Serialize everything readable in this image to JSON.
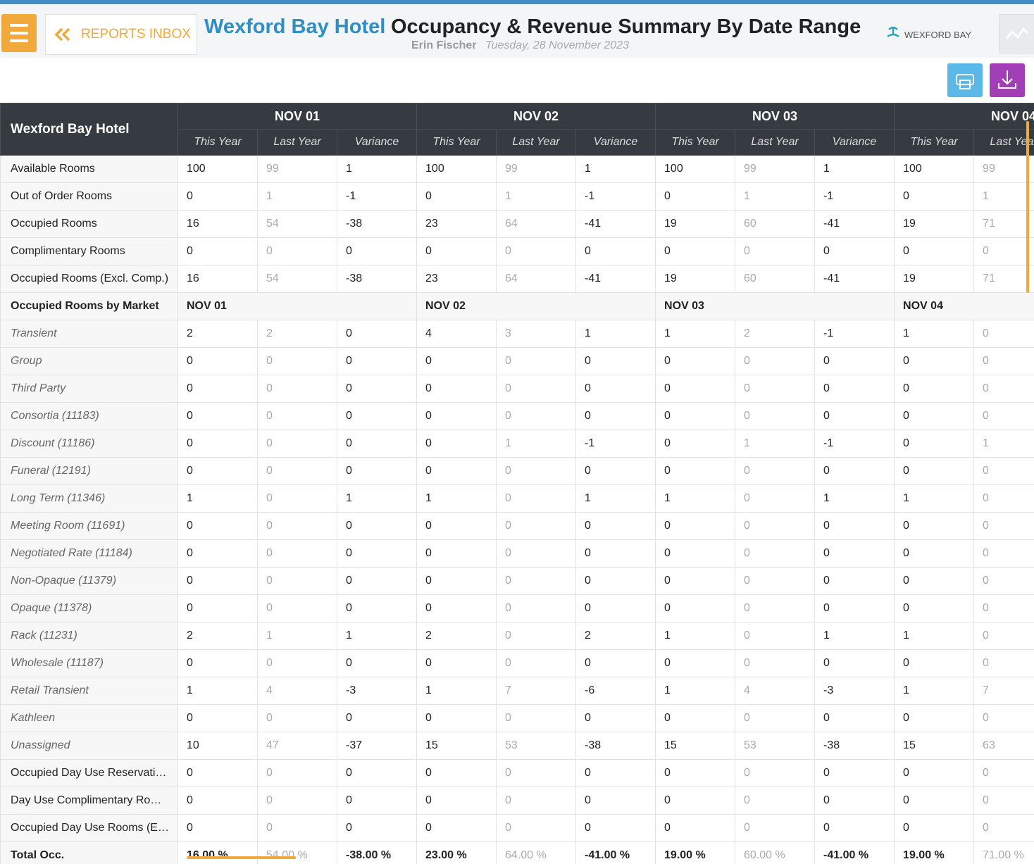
{
  "header": {
    "menu_button": "",
    "back_label": "REPORTS INBOX",
    "hotel": "Wexford Bay Hotel",
    "report_title": "Occupancy & Revenue Summary By Date Range",
    "user": "Erin Fischer",
    "date": "Tuesday, 28 November 2023",
    "logo": "WEXFORD BAY"
  },
  "table": {
    "corner": "Wexford Bay Hotel",
    "dates": [
      "NOV 01",
      "NOV 02",
      "NOV 03",
      "NOV 04"
    ],
    "columns": [
      "This Year",
      "Last Year",
      "Variance"
    ],
    "rows": [
      {
        "label": "Available Rooms",
        "values": [
          100,
          99,
          1,
          100,
          99,
          1,
          100,
          99,
          1,
          100,
          99
        ]
      },
      {
        "label": "Out of Order Rooms",
        "values": [
          0,
          1,
          -1,
          0,
          1,
          -1,
          0,
          1,
          -1,
          0,
          1
        ]
      },
      {
        "label": "Occupied Rooms",
        "values": [
          16,
          54,
          -38,
          23,
          64,
          -41,
          19,
          60,
          -41,
          19,
          71
        ]
      },
      {
        "label": "Complimentary Rooms",
        "values": [
          0,
          0,
          0,
          0,
          0,
          0,
          0,
          0,
          0,
          0,
          0
        ]
      },
      {
        "label": "Occupied Rooms (Excl. Comp.)",
        "values": [
          16,
          54,
          -38,
          23,
          64,
          -41,
          19,
          60,
          -41,
          19,
          71
        ]
      }
    ],
    "market": {
      "label": "Occupied Rooms by Market",
      "rows": [
        {
          "label": "Transient",
          "values": [
            2,
            2,
            0,
            4,
            3,
            1,
            1,
            2,
            -1,
            1,
            0
          ]
        },
        {
          "label": "Group",
          "values": [
            0,
            0,
            0,
            0,
            0,
            0,
            0,
            0,
            0,
            0,
            0
          ]
        },
        {
          "label": "Third Party",
          "values": [
            0,
            0,
            0,
            0,
            0,
            0,
            0,
            0,
            0,
            0,
            0
          ]
        },
        {
          "label": "Consortia (11183)",
          "values": [
            0,
            0,
            0,
            0,
            0,
            0,
            0,
            0,
            0,
            0,
            0
          ]
        },
        {
          "label": "Discount (11186)",
          "values": [
            0,
            0,
            0,
            0,
            1,
            -1,
            0,
            1,
            -1,
            0,
            1
          ]
        },
        {
          "label": "Funeral (12191)",
          "values": [
            0,
            0,
            0,
            0,
            0,
            0,
            0,
            0,
            0,
            0,
            0
          ]
        },
        {
          "label": "Long Term (11346)",
          "values": [
            1,
            0,
            1,
            1,
            0,
            1,
            1,
            0,
            1,
            1,
            0
          ]
        },
        {
          "label": "Meeting Room (11691)",
          "values": [
            0,
            0,
            0,
            0,
            0,
            0,
            0,
            0,
            0,
            0,
            0
          ]
        },
        {
          "label": "Negotiated Rate (11184)",
          "values": [
            0,
            0,
            0,
            0,
            0,
            0,
            0,
            0,
            0,
            0,
            0
          ]
        },
        {
          "label": "Non-Opaque (11379)",
          "values": [
            0,
            0,
            0,
            0,
            0,
            0,
            0,
            0,
            0,
            0,
            0
          ]
        },
        {
          "label": "Opaque (11378)",
          "values": [
            0,
            0,
            0,
            0,
            0,
            0,
            0,
            0,
            0,
            0,
            0
          ]
        },
        {
          "label": "Rack (11231)",
          "values": [
            2,
            1,
            1,
            2,
            0,
            2,
            1,
            0,
            1,
            1,
            0
          ]
        },
        {
          "label": "Wholesale (11187)",
          "values": [
            0,
            0,
            0,
            0,
            0,
            0,
            0,
            0,
            0,
            0,
            0
          ]
        },
        {
          "label": "Retail Transient",
          "values": [
            1,
            4,
            -3,
            1,
            7,
            -6,
            1,
            4,
            -3,
            1,
            7
          ]
        },
        {
          "label": "Kathleen",
          "values": [
            0,
            0,
            0,
            0,
            0,
            0,
            0,
            0,
            0,
            0,
            0
          ]
        },
        {
          "label": "Unassigned",
          "values": [
            10,
            47,
            -37,
            15,
            53,
            -38,
            15,
            53,
            -38,
            15,
            63
          ]
        }
      ]
    },
    "day_use_rows": [
      {
        "label": "Occupied Day Use Reservati…",
        "values": [
          0,
          0,
          0,
          0,
          0,
          0,
          0,
          0,
          0,
          0,
          0
        ]
      },
      {
        "label": "Day Use Complimentary Ro…",
        "values": [
          0,
          0,
          0,
          0,
          0,
          0,
          0,
          0,
          0,
          0,
          0
        ]
      },
      {
        "label": "Occupied Day Use Rooms (E…",
        "values": [
          0,
          0,
          0,
          0,
          0,
          0,
          0,
          0,
          0,
          0,
          0
        ]
      }
    ],
    "total": {
      "label": "Total Occ.",
      "values": [
        "16.00 %",
        "54.00 %",
        "-38.00 %",
        "23.00 %",
        "64.00 %",
        "-41.00 %",
        "19.00 %",
        "60.00 %",
        "-41.00 %",
        "19.00 %",
        "71.00 %"
      ]
    }
  }
}
